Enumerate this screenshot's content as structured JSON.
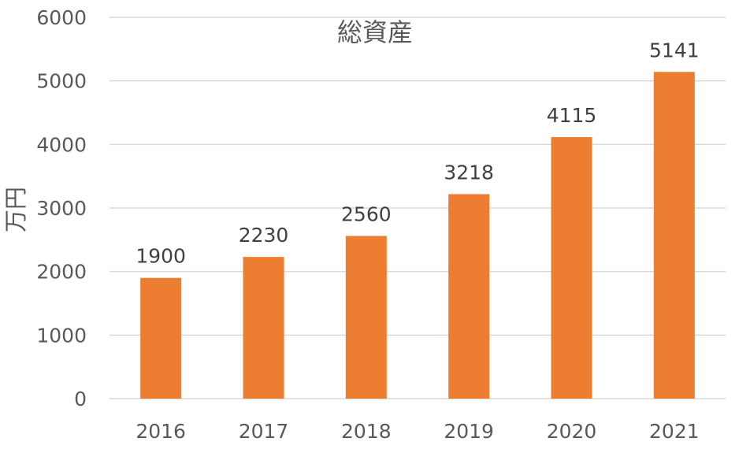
{
  "chart_data": {
    "type": "bar",
    "title": "総資産",
    "xlabel": "",
    "ylabel": "万円",
    "categories": [
      "2016",
      "2017",
      "2018",
      "2019",
      "2020",
      "2021"
    ],
    "values": [
      1900,
      2230,
      2560,
      3218,
      4115,
      5141
    ],
    "data_labels": [
      "1900",
      "2230",
      "2560",
      "3218",
      "4115",
      "5141"
    ],
    "ylim": [
      0,
      6000
    ],
    "yticks": [
      "0",
      "1000",
      "2000",
      "3000",
      "4000",
      "5000",
      "6000"
    ],
    "ytick_values": [
      0,
      1000,
      2000,
      3000,
      4000,
      5000,
      6000
    ],
    "grid": true,
    "legend": "none",
    "bar_color": "#ED7D31"
  }
}
